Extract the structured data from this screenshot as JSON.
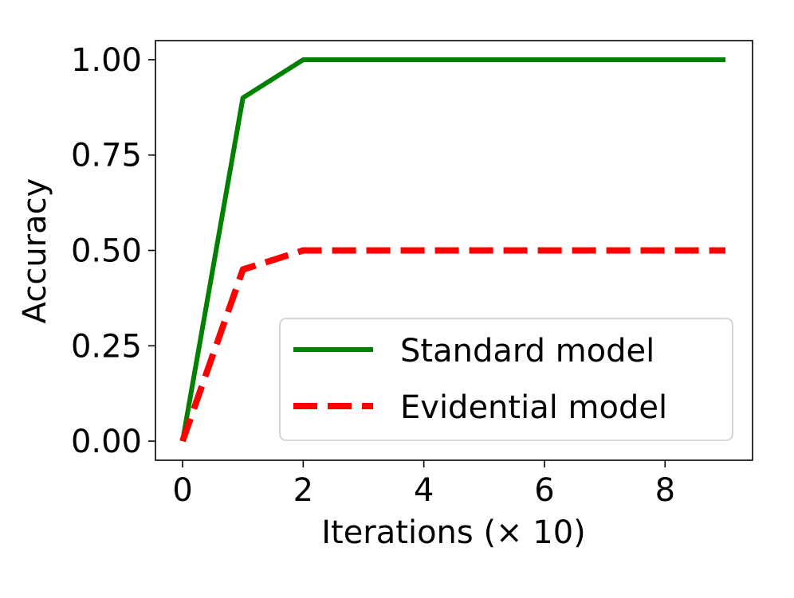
{
  "chart_data": {
    "type": "line",
    "title": "",
    "xlabel": "Iterations (× 10)",
    "ylabel": "Accuracy",
    "xlim": [
      -0.45,
      9.45
    ],
    "ylim": [
      -0.05,
      1.05
    ],
    "xticks": [
      0,
      2,
      4,
      6,
      8
    ],
    "xtick_labels": [
      "0",
      "2",
      "4",
      "6",
      "8"
    ],
    "yticks": [
      0.0,
      0.25,
      0.5,
      0.75,
      1.0
    ],
    "ytick_labels": [
      "0.00",
      "0.25",
      "0.50",
      "0.75",
      "1.00"
    ],
    "grid": false,
    "legend_position": "lower-right",
    "x": [
      0,
      1,
      2,
      3,
      4,
      5,
      6,
      7,
      8,
      9
    ],
    "series": [
      {
        "name": "Standard model",
        "color": "#008000",
        "line_style": "solid",
        "values": [
          0.0,
          0.9,
          1.0,
          1.0,
          1.0,
          1.0,
          1.0,
          1.0,
          1.0,
          1.0
        ]
      },
      {
        "name": "Evidential model",
        "color": "#ff0000",
        "line_style": "dashed",
        "values": [
          0.0,
          0.45,
          0.5,
          0.5,
          0.5,
          0.5,
          0.5,
          0.5,
          0.5,
          0.5
        ]
      }
    ]
  }
}
